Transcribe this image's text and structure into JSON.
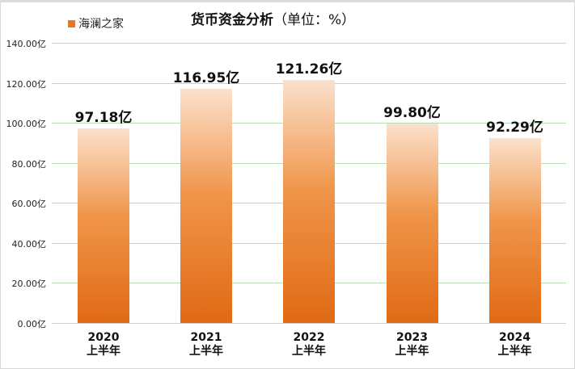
{
  "legend": {
    "label": "海澜之家",
    "color": "#e8762a"
  },
  "title": {
    "main": "货币资金分析",
    "unit": "（单位：%）"
  },
  "colors": {
    "bar_top": "#fbe1cc",
    "bar_mid": "#f0954a",
    "bar_bottom": "#e06a15",
    "grid": "#b9dcb9",
    "axis": "#d0d0d0"
  },
  "chart_data": {
    "type": "bar",
    "title": "货币资金分析（单位：%）",
    "xlabel": "",
    "ylabel": "",
    "categories": [
      "2020 上半年",
      "2021 上半年",
      "2022 上半年",
      "2023 上半年",
      "2024 上半年"
    ],
    "series": [
      {
        "name": "海澜之家",
        "values": [
          97.18,
          116.95,
          121.26,
          99.8,
          92.29
        ]
      }
    ],
    "data_labels": [
      "97.18亿",
      "116.95亿",
      "121.26亿",
      "99.80亿",
      "92.29亿"
    ],
    "ylim": [
      0,
      140
    ],
    "yticks": [
      "0.00亿",
      "20.00亿",
      "40.00亿",
      "60.00亿",
      "80.00亿",
      "100.00亿",
      "120.00亿",
      "140.00亿"
    ],
    "grid": true,
    "legend_position": "top-left"
  },
  "xaxis": {
    "labels": [
      {
        "year": "2020",
        "period": "上半年"
      },
      {
        "year": "2021",
        "period": "上半年"
      },
      {
        "year": "2022",
        "period": "上半年"
      },
      {
        "year": "2023",
        "period": "上半年"
      },
      {
        "year": "2024",
        "period": "上半年"
      }
    ]
  }
}
